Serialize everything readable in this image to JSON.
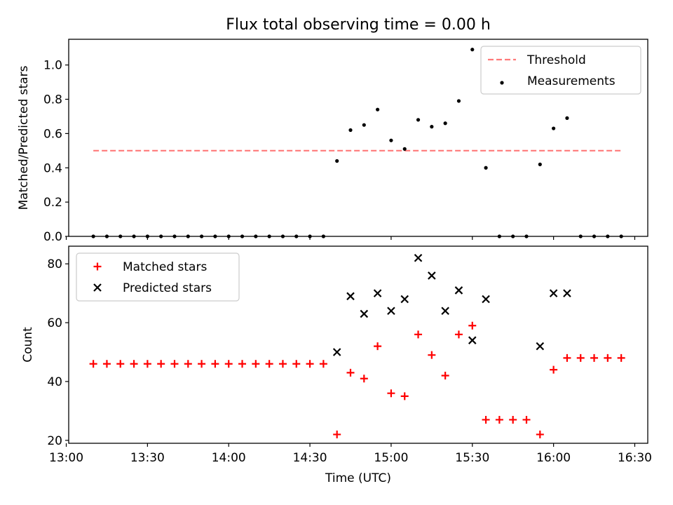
{
  "title": "Flux total observing time = 0.00 h",
  "chart_data": [
    {
      "type": "scatter",
      "panel": "top",
      "ylabel": "Matched/Predicted stars",
      "ylim": [
        0,
        1.15
      ],
      "yticks": [
        0.0,
        0.2,
        0.4,
        0.6,
        0.8,
        1.0
      ],
      "ytick_labels": [
        "0.0",
        "0.2",
        "0.4",
        "0.6",
        "0.8",
        "1.0"
      ],
      "legend": {
        "position": "top-right",
        "entries": [
          {
            "label": "Threshold",
            "style": "dashed-line",
            "color": "#ff7a7a"
          },
          {
            "label": "Measurements",
            "style": "dot",
            "color": "#000000"
          }
        ]
      },
      "threshold": {
        "value": 0.5,
        "x_start": "13:10",
        "x_end": "16:25",
        "color": "#ff7a7a"
      },
      "series": [
        {
          "name": "Measurements",
          "x": [
            "13:10",
            "13:15",
            "13:20",
            "13:25",
            "13:30",
            "13:35",
            "13:40",
            "13:45",
            "13:50",
            "13:55",
            "14:00",
            "14:05",
            "14:10",
            "14:15",
            "14:20",
            "14:25",
            "14:30",
            "14:35",
            "14:40",
            "14:45",
            "14:50",
            "14:55",
            "15:00",
            "15:05",
            "15:10",
            "15:15",
            "15:20",
            "15:25",
            "15:30",
            "15:35",
            "15:40",
            "15:45",
            "15:50",
            "15:55",
            "16:00",
            "16:05",
            "16:10",
            "16:15",
            "16:20",
            "16:25"
          ],
          "y": [
            0,
            0,
            0,
            0,
            0,
            0,
            0,
            0,
            0,
            0,
            0,
            0,
            0,
            0,
            0,
            0,
            0,
            0,
            0.44,
            0.62,
            0.65,
            0.74,
            0.56,
            0.51,
            0.68,
            0.64,
            0.66,
            0.79,
            1.09,
            0.4,
            0,
            0,
            0,
            0.42,
            0.63,
            0.69,
            0,
            0,
            0,
            0
          ]
        }
      ]
    },
    {
      "type": "scatter",
      "panel": "bottom",
      "ylabel": "Count",
      "xlabel": "Time (UTC)",
      "ylim": [
        19,
        86
      ],
      "yticks": [
        20,
        40,
        60,
        80
      ],
      "ytick_labels": [
        "20",
        "40",
        "60",
        "80"
      ],
      "xticks": [
        "13:00",
        "13:30",
        "14:00",
        "14:30",
        "15:00",
        "15:30",
        "16:00",
        "16:30"
      ],
      "legend": {
        "position": "top-left",
        "entries": [
          {
            "label": "Matched stars",
            "style": "plus",
            "color": "#ff0000"
          },
          {
            "label": "Predicted stars",
            "style": "x",
            "color": "#000000"
          }
        ]
      },
      "series": [
        {
          "name": "Matched stars",
          "color": "#ff0000",
          "marker": "plus",
          "x": [
            "13:10",
            "13:15",
            "13:20",
            "13:25",
            "13:30",
            "13:35",
            "13:40",
            "13:45",
            "13:50",
            "13:55",
            "14:00",
            "14:05",
            "14:10",
            "14:15",
            "14:20",
            "14:25",
            "14:30",
            "14:35",
            "14:40",
            "14:45",
            "14:50",
            "14:55",
            "15:00",
            "15:05",
            "15:10",
            "15:15",
            "15:20",
            "15:25",
            "15:30",
            "15:35",
            "15:40",
            "15:45",
            "15:50",
            "15:55",
            "16:00",
            "16:05",
            "16:10",
            "16:15",
            "16:20",
            "16:25"
          ],
          "y": [
            46,
            46,
            46,
            46,
            46,
            46,
            46,
            46,
            46,
            46,
            46,
            46,
            46,
            46,
            46,
            46,
            46,
            46,
            22,
            43,
            41,
            52,
            36,
            35,
            56,
            49,
            42,
            56,
            59,
            27,
            27,
            27,
            27,
            22,
            44,
            48,
            48,
            48,
            48,
            48
          ]
        },
        {
          "name": "Predicted stars",
          "color": "#000000",
          "marker": "x",
          "x": [
            "14:40",
            "14:45",
            "14:50",
            "14:55",
            "15:00",
            "15:05",
            "15:10",
            "15:15",
            "15:20",
            "15:25",
            "15:30",
            "15:35",
            "15:55",
            "16:00",
            "16:05"
          ],
          "y": [
            50,
            69,
            63,
            70,
            64,
            68,
            82,
            76,
            64,
            71,
            54,
            68,
            52,
            70,
            70
          ]
        }
      ]
    }
  ]
}
